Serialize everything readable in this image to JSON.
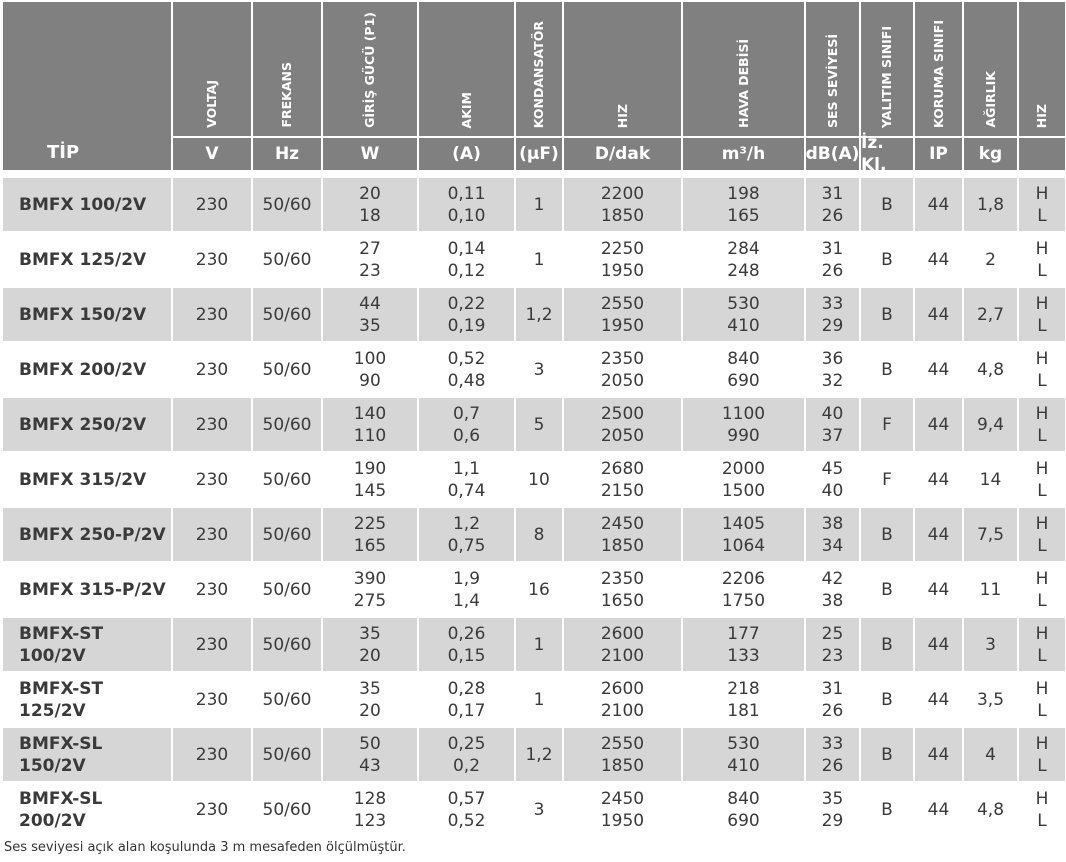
{
  "table": {
    "columns": [
      {
        "title": "TİP"
      },
      {
        "title": "VOLTAJ",
        "unit": "V"
      },
      {
        "title": "FREKANS",
        "unit": "Hz"
      },
      {
        "title": "GİRİŞ GÜCÜ (P1)",
        "unit": "W"
      },
      {
        "title": "AKIM",
        "unit": "(A)"
      },
      {
        "title": "KONDANSATÖR",
        "unit": "(µF)"
      },
      {
        "title": "HIZ",
        "unit": "D/dak"
      },
      {
        "title": "HAVA DEBİSİ",
        "unit": "m³/h"
      },
      {
        "title": "SES SEVİYESİ",
        "unit": "dB(A)"
      },
      {
        "title": "YALITIM SINIFI",
        "unit": "İz. Kl."
      },
      {
        "title": "KORUMA SINIFI",
        "unit": "IP"
      },
      {
        "title": "AĞIRLIK",
        "unit": "kg"
      },
      {
        "title": "HIZ"
      }
    ],
    "rows": [
      [
        "BMFX 100/2V",
        "230",
        "50/60",
        [
          "20",
          "18"
        ],
        [
          "0,11",
          "0,10"
        ],
        "1",
        [
          "2200",
          "1850"
        ],
        [
          "198",
          "165"
        ],
        [
          "31",
          "26"
        ],
        "B",
        "44",
        "1,8",
        [
          "H",
          "L"
        ]
      ],
      [
        "BMFX 125/2V",
        "230",
        "50/60",
        [
          "27",
          "23"
        ],
        [
          "0,14",
          "0,12"
        ],
        "1",
        [
          "2250",
          "1950"
        ],
        [
          "284",
          "248"
        ],
        [
          "31",
          "26"
        ],
        "B",
        "44",
        "2",
        [
          "H",
          "L"
        ]
      ],
      [
        "BMFX 150/2V",
        "230",
        "50/60",
        [
          "44",
          "35"
        ],
        [
          "0,22",
          "0,19"
        ],
        "1,2",
        [
          "2550",
          "1950"
        ],
        [
          "530",
          "410"
        ],
        [
          "33",
          "29"
        ],
        "B",
        "44",
        "2,7",
        [
          "H",
          "L"
        ]
      ],
      [
        "BMFX 200/2V",
        "230",
        "50/60",
        [
          "100",
          "90"
        ],
        [
          "0,52",
          "0,48"
        ],
        "3",
        [
          "2350",
          "2050"
        ],
        [
          "840",
          "690"
        ],
        [
          "36",
          "32"
        ],
        "B",
        "44",
        "4,8",
        [
          "H",
          "L"
        ]
      ],
      [
        "BMFX 250/2V",
        "230",
        "50/60",
        [
          "140",
          "110"
        ],
        [
          "0,7",
          "0,6"
        ],
        "5",
        [
          "2500",
          "2050"
        ],
        [
          "1100",
          "990"
        ],
        [
          "40",
          "37"
        ],
        "F",
        "44",
        "9,4",
        [
          "H",
          "L"
        ]
      ],
      [
        "BMFX 315/2V",
        "230",
        "50/60",
        [
          "190",
          "145"
        ],
        [
          "1,1",
          "0,74"
        ],
        "10",
        [
          "2680",
          "2150"
        ],
        [
          "2000",
          "1500"
        ],
        [
          "45",
          "40"
        ],
        "F",
        "44",
        "14",
        [
          "H",
          "L"
        ]
      ],
      [
        "BMFX 250-P/2V",
        "230",
        "50/60",
        [
          "225",
          "165"
        ],
        [
          "1,2",
          "0,75"
        ],
        "8",
        [
          "2450",
          "1850"
        ],
        [
          "1405",
          "1064"
        ],
        [
          "38",
          "34"
        ],
        "B",
        "44",
        "7,5",
        [
          "H",
          "L"
        ]
      ],
      [
        "BMFX 315-P/2V",
        "230",
        "50/60",
        [
          "390",
          "275"
        ],
        [
          "1,9",
          "1,4"
        ],
        "16",
        [
          "2350",
          "1650"
        ],
        [
          "2206",
          "1750"
        ],
        [
          "42",
          "38"
        ],
        "B",
        "44",
        "11",
        [
          "H",
          "L"
        ]
      ],
      [
        "BMFX-ST 100/2V",
        "230",
        "50/60",
        [
          "35",
          "20"
        ],
        [
          "0,26",
          "0,15"
        ],
        "1",
        [
          "2600",
          "2100"
        ],
        [
          "177",
          "133"
        ],
        [
          "25",
          "23"
        ],
        "B",
        "44",
        "3",
        [
          "H",
          "L"
        ]
      ],
      [
        "BMFX-ST 125/2V",
        "230",
        "50/60",
        [
          "35",
          "20"
        ],
        [
          "0,28",
          "0,17"
        ],
        "1",
        [
          "2600",
          "2100"
        ],
        [
          "218",
          "181"
        ],
        [
          "31",
          "26"
        ],
        "B",
        "44",
        "3,5",
        [
          "H",
          "L"
        ]
      ],
      [
        "BMFX-SL 150/2V",
        "230",
        "50/60",
        [
          "50",
          "43"
        ],
        [
          "0,25",
          "0,2"
        ],
        "1,2",
        [
          "2550",
          "1850"
        ],
        [
          "530",
          "410"
        ],
        [
          "33",
          "26"
        ],
        "B",
        "44",
        "4",
        [
          "H",
          "L"
        ]
      ],
      [
        "BMFX-SL 200/2V",
        "230",
        "50/60",
        [
          "128",
          "123"
        ],
        [
          "0,57",
          "0,52"
        ],
        "3",
        [
          "2450",
          "1950"
        ],
        [
          "840",
          "690"
        ],
        [
          "35",
          "29"
        ],
        "B",
        "44",
        "4,8",
        [
          "H",
          "L"
        ]
      ]
    ],
    "note": "Ses seviyesi açık alan koşulunda 3 m mesafeden ölçülmüştür."
  }
}
